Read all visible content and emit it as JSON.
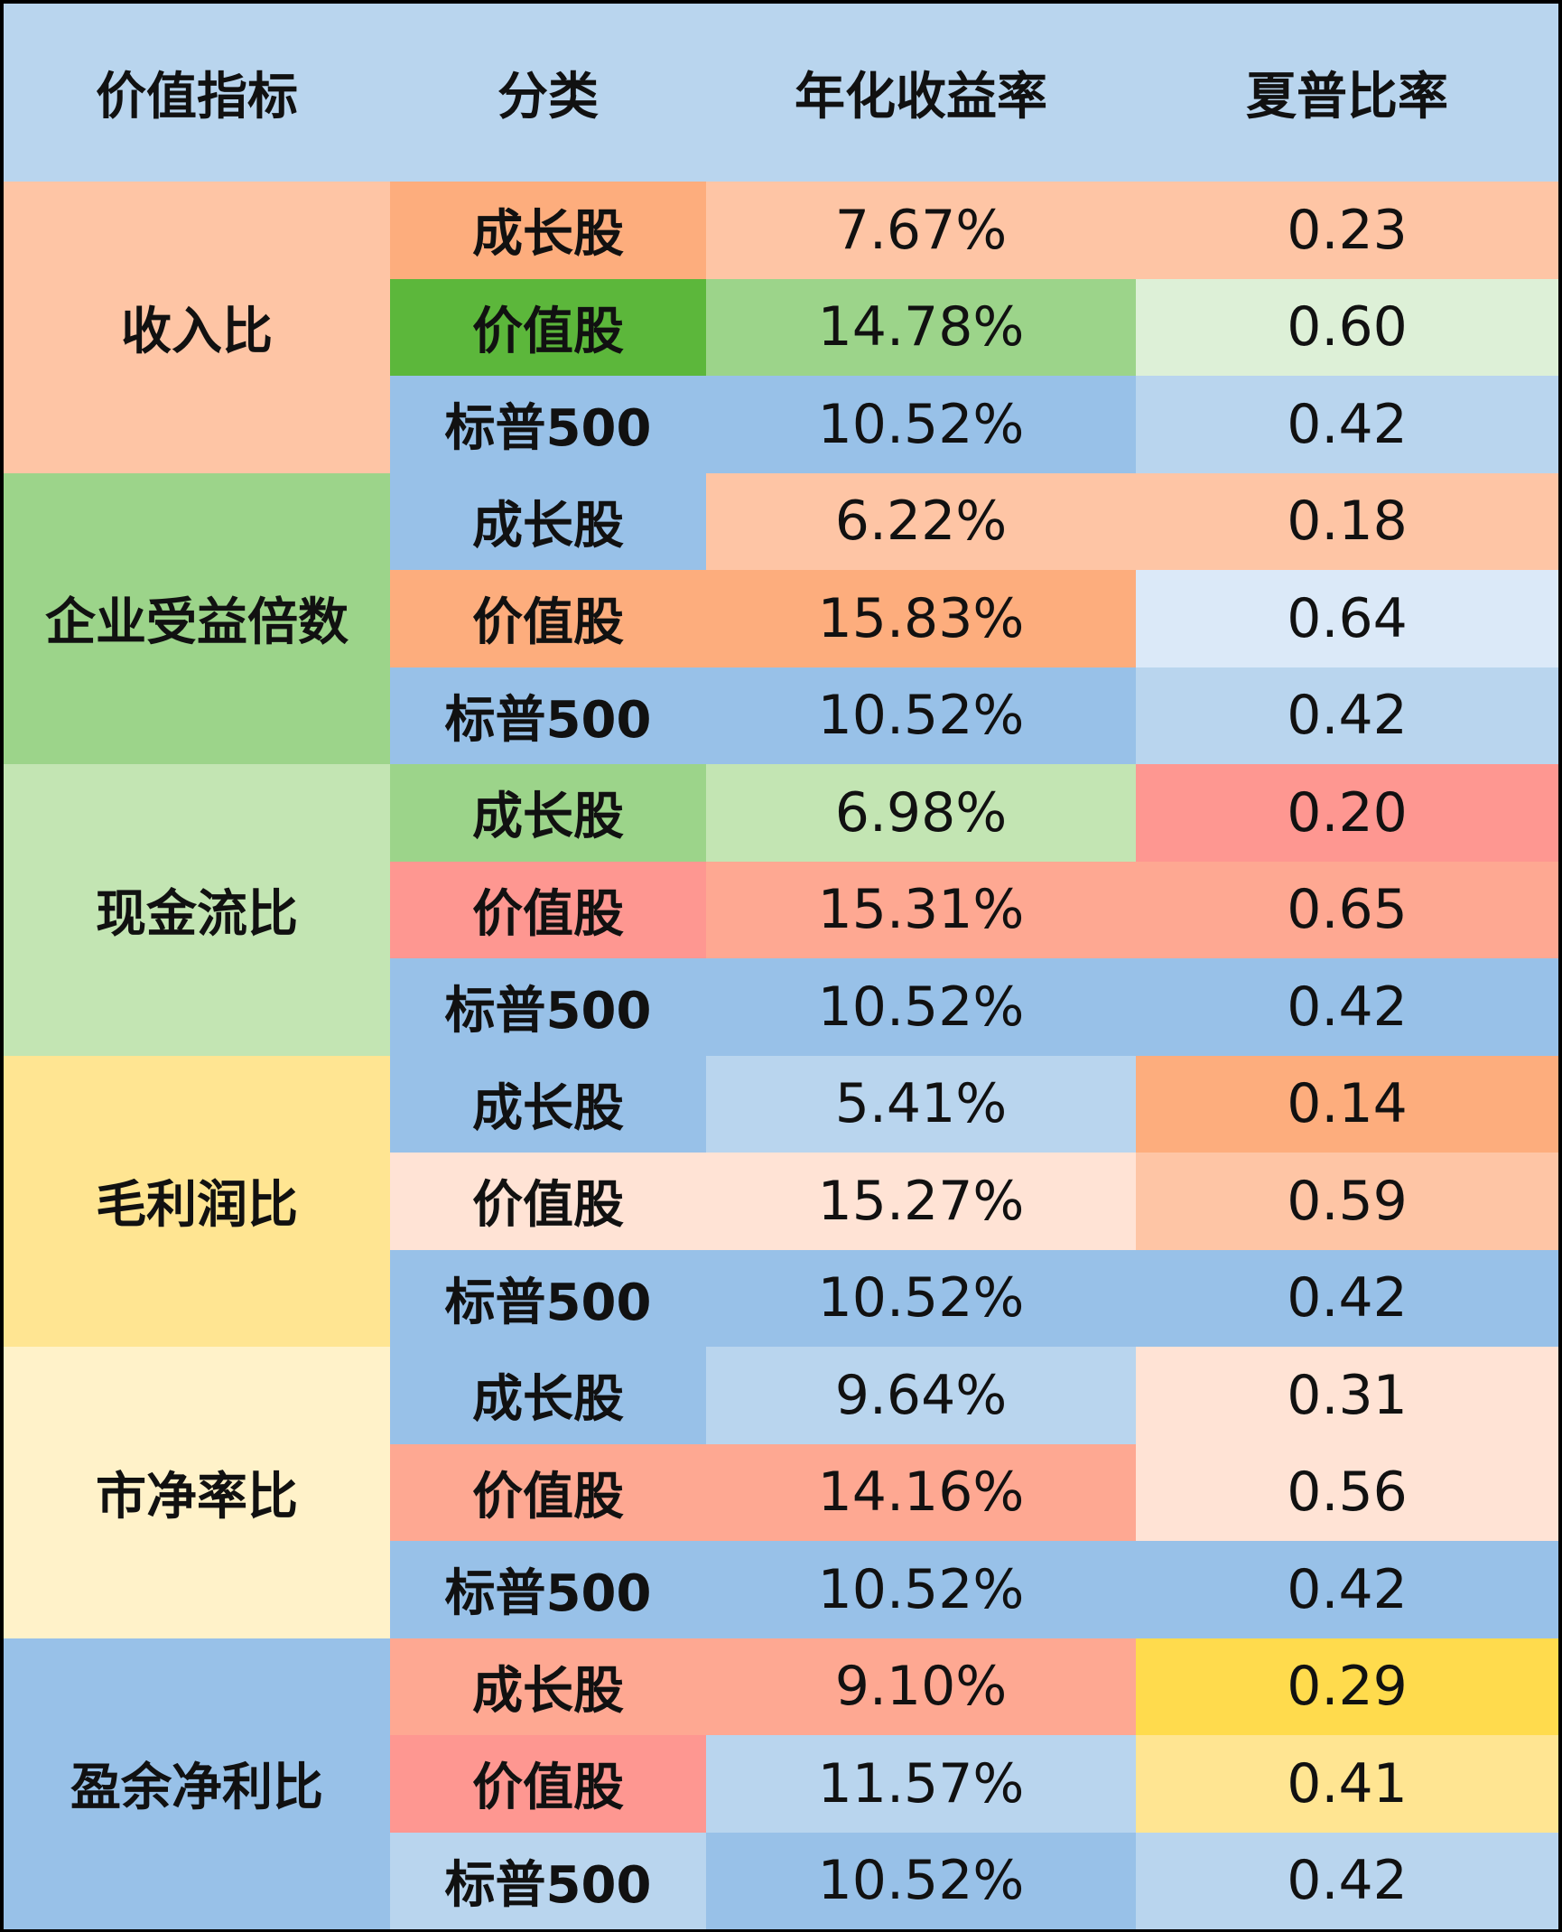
{
  "chart_data": {
    "type": "table",
    "columns": [
      "价值指标",
      "分类",
      "年化收益率",
      "夏普比率"
    ],
    "header_color": "#b9d5ee",
    "groups": [
      {
        "indicator": "收入比",
        "color": "#fec5a5",
        "rows": [
          {
            "category": "成长股",
            "return": "7.67%",
            "sharpe": "0.23",
            "colors": [
              "#fdad7d",
              "#fec5a5",
              "#fec5a5"
            ]
          },
          {
            "category": "价值股",
            "return": "14.78%",
            "sharpe": "0.60",
            "colors": [
              "#5cb73b",
              "#9cd48a",
              "#ddf0d7"
            ]
          },
          {
            "category": "标普500",
            "return": "10.52%",
            "sharpe": "0.42",
            "colors": [
              "#98c1e8",
              "#98c1e8",
              "#b9d5ee"
            ]
          }
        ]
      },
      {
        "indicator": "企业受益倍数",
        "color": "#9cd48a",
        "rows": [
          {
            "category": "成长股",
            "return": "6.22%",
            "sharpe": "0.18",
            "colors": [
              "#98c1e8",
              "#fec5a5",
              "#fec5a5"
            ]
          },
          {
            "category": "价值股",
            "return": "15.83%",
            "sharpe": "0.64",
            "colors": [
              "#fdad7d",
              "#fdad7d",
              "#dbe9f8"
            ]
          },
          {
            "category": "标普500",
            "return": "10.52%",
            "sharpe": "0.42",
            "colors": [
              "#98c1e8",
              "#98c1e8",
              "#b9d5ee"
            ]
          }
        ]
      },
      {
        "indicator": "现金流比",
        "color": "#c3e5b3",
        "rows": [
          {
            "category": "成长股",
            "return": "6.98%",
            "sharpe": "0.20",
            "colors": [
              "#9cd48a",
              "#c3e5b3",
              "#fe9791"
            ]
          },
          {
            "category": "价值股",
            "return": "15.31%",
            "sharpe": "0.65",
            "colors": [
              "#fe9791",
              "#fea892",
              "#fea892"
            ]
          },
          {
            "category": "标普500",
            "return": "10.52%",
            "sharpe": "0.42",
            "colors": [
              "#98c1e8",
              "#98c1e8",
              "#98c1e8"
            ]
          }
        ]
      },
      {
        "indicator": "毛利润比",
        "color": "#ffe592",
        "rows": [
          {
            "category": "成长股",
            "return": "5.41%",
            "sharpe": "0.14",
            "colors": [
              "#98c1e8",
              "#b9d5ee",
              "#fdad7d"
            ]
          },
          {
            "category": "价值股",
            "return": "15.27%",
            "sharpe": "0.59",
            "colors": [
              "#ffe3d5",
              "#ffe3d5",
              "#fec5a5"
            ]
          },
          {
            "category": "标普500",
            "return": "10.52%",
            "sharpe": "0.42",
            "colors": [
              "#98c1e8",
              "#98c1e8",
              "#98c1e8"
            ]
          }
        ]
      },
      {
        "indicator": "市净率比",
        "color": "#fff2c9",
        "rows": [
          {
            "category": "成长股",
            "return": "9.64%",
            "sharpe": "0.31",
            "colors": [
              "#98c1e8",
              "#b9d5ee",
              "#ffe3d5"
            ]
          },
          {
            "category": "价值股",
            "return": "14.16%",
            "sharpe": "0.56",
            "colors": [
              "#fea892",
              "#fea892",
              "#ffe3d5"
            ]
          },
          {
            "category": "标普500",
            "return": "10.52%",
            "sharpe": "0.42",
            "colors": [
              "#98c1e8",
              "#98c1e8",
              "#98c1e8"
            ]
          }
        ]
      },
      {
        "indicator": "盈余净利比",
        "color": "#98c1e8",
        "rows": [
          {
            "category": "成长股",
            "return": "9.10%",
            "sharpe": "0.29",
            "colors": [
              "#fea892",
              "#fea892",
              "#ffdb4d"
            ]
          },
          {
            "category": "价值股",
            "return": "11.57%",
            "sharpe": "0.41",
            "colors": [
              "#fe9791",
              "#b9d5ee",
              "#ffe592"
            ]
          },
          {
            "category": "标普500",
            "return": "10.52%",
            "sharpe": "0.42",
            "colors": [
              "#b9d5ee",
              "#98c1e8",
              "#b9d5ee"
            ]
          }
        ]
      }
    ]
  }
}
